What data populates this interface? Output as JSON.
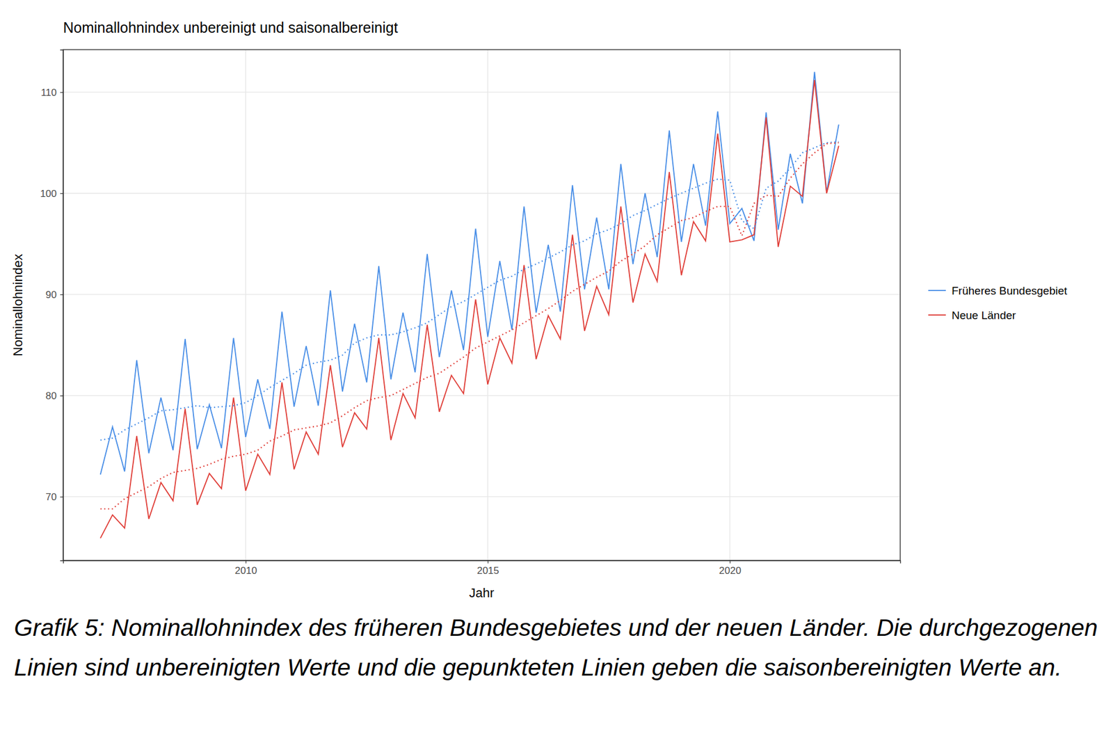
{
  "chart_data": {
    "type": "line",
    "title": "Nominallohnindex unbereinigt und saisonalbereinigt",
    "x_label": "Jahr",
    "y_label": "Nominallohnindex",
    "caption": "Grafik 5: Nominallohnindex des früheren Bundesgebietes und der neuen Länder. Die durchgezogenen Linien sind unbereinigten Werte und die gepunkteten Linien geben die saisonbereinigten Werte an.",
    "x": [
      2007,
      2007.25,
      2007.5,
      2007.75,
      2008,
      2008.25,
      2008.5,
      2008.75,
      2009,
      2009.25,
      2009.5,
      2009.75,
      2010,
      2010.25,
      2010.5,
      2010.75,
      2011,
      2011.25,
      2011.5,
      2011.75,
      2012,
      2012.25,
      2012.5,
      2012.75,
      2013,
      2013.25,
      2013.5,
      2013.75,
      2014,
      2014.25,
      2014.5,
      2014.75,
      2015,
      2015.25,
      2015.5,
      2015.75,
      2016,
      2016.25,
      2016.5,
      2016.75,
      2017,
      2017.25,
      2017.5,
      2017.75,
      2018,
      2018.25,
      2018.5,
      2018.75,
      2019,
      2019.25,
      2019.5,
      2019.75,
      2020,
      2020.25,
      2020.5,
      2020.75,
      2021,
      2021.25,
      2021.5,
      2021.75,
      2022,
      2022.25
    ],
    "xlim": [
      2006.23,
      2023.52
    ],
    "xticks": [
      2010,
      2015,
      2020
    ],
    "ylim": [
      63.7,
      114.2
    ],
    "yticks": [
      70,
      80,
      90,
      100,
      110
    ],
    "grid": true,
    "legend": "right",
    "series": [
      {
        "name": "Früheres Bundesgebiet",
        "color": "#4a8fe7",
        "line_style": "solid",
        "values": [
          72.2,
          76.9,
          72.5,
          83.5,
          74.3,
          79.8,
          74.6,
          85.6,
          74.7,
          79.1,
          74.8,
          85.7,
          75.9,
          81.6,
          76.7,
          88.3,
          78.9,
          84.9,
          79.0,
          90.4,
          80.4,
          87.1,
          81.3,
          92.8,
          81.6,
          88.2,
          82.3,
          94.0,
          83.8,
          90.4,
          84.5,
          96.5,
          85.8,
          93.3,
          86.5,
          98.7,
          88.2,
          94.9,
          88.3,
          100.8,
          90.5,
          97.6,
          90.5,
          102.9,
          93.0,
          100.0,
          93.7,
          106.2,
          95.2,
          102.9,
          96.8,
          108.1,
          97.0,
          98.5,
          95.3,
          108.0,
          96.4,
          103.9,
          99.0,
          112.0,
          100.1,
          106.8
        ]
      },
      {
        "name": "Neue Länder",
        "color": "#e0403a",
        "line_style": "solid",
        "values": [
          65.9,
          68.2,
          66.9,
          76.0,
          67.8,
          71.4,
          69.6,
          78.7,
          69.2,
          72.3,
          70.8,
          79.8,
          70.6,
          74.2,
          72.2,
          81.3,
          72.7,
          76.4,
          74.2,
          83.0,
          74.9,
          78.3,
          76.7,
          85.7,
          75.6,
          80.2,
          77.8,
          87.0,
          78.4,
          82.0,
          80.2,
          89.5,
          81.1,
          85.7,
          83.2,
          92.9,
          83.6,
          87.9,
          85.6,
          95.9,
          86.4,
          90.8,
          88.0,
          98.7,
          89.2,
          94.0,
          91.3,
          102.1,
          91.9,
          97.2,
          95.3,
          105.9,
          95.2,
          95.4,
          95.9,
          107.5,
          94.7,
          100.7,
          99.7,
          111.2,
          100.0,
          104.7
        ]
      },
      {
        "color": "#4a8fe7",
        "line_style": "dotted",
        "values": [
          75.6,
          75.8,
          76.6,
          77.2,
          77.8,
          78.5,
          78.6,
          78.8,
          79.0,
          78.8,
          78.9,
          79.0,
          79.3,
          80.0,
          80.8,
          81.5,
          82.2,
          83.0,
          83.3,
          83.5,
          84.0,
          85.2,
          85.7,
          86.0,
          86.0,
          86.3,
          86.7,
          87.2,
          88.0,
          88.8,
          89.3,
          90.0,
          90.7,
          91.4,
          91.8,
          92.5,
          93.0,
          93.6,
          94.2,
          94.9,
          95.3,
          96.0,
          96.4,
          97.0,
          97.8,
          98.3,
          98.9,
          99.5,
          100.0,
          100.5,
          101.0,
          101.4,
          101.3,
          97.3,
          96.5,
          100.5,
          101.2,
          102.5,
          104.0,
          104.5,
          105.0,
          105.1
        ]
      },
      {
        "color": "#e0403a",
        "line_style": "dotted",
        "values": [
          68.8,
          68.8,
          69.8,
          70.4,
          71.0,
          71.8,
          72.4,
          72.6,
          72.8,
          73.2,
          73.7,
          74.0,
          74.2,
          74.6,
          75.5,
          76.0,
          76.6,
          76.8,
          77.0,
          77.3,
          78.0,
          78.8,
          79.5,
          79.8,
          80.0,
          80.6,
          81.2,
          81.8,
          82.2,
          83.0,
          83.8,
          84.7,
          85.3,
          85.9,
          86.5,
          87.2,
          87.9,
          88.6,
          89.4,
          90.3,
          91.0,
          91.7,
          92.3,
          93.3,
          94.0,
          94.8,
          95.9,
          96.6,
          97.3,
          97.6,
          98.2,
          98.7,
          98.7,
          95.8,
          99.0,
          99.8,
          99.7,
          101.5,
          102.9,
          104.0,
          104.9,
          105.0
        ]
      }
    ]
  }
}
